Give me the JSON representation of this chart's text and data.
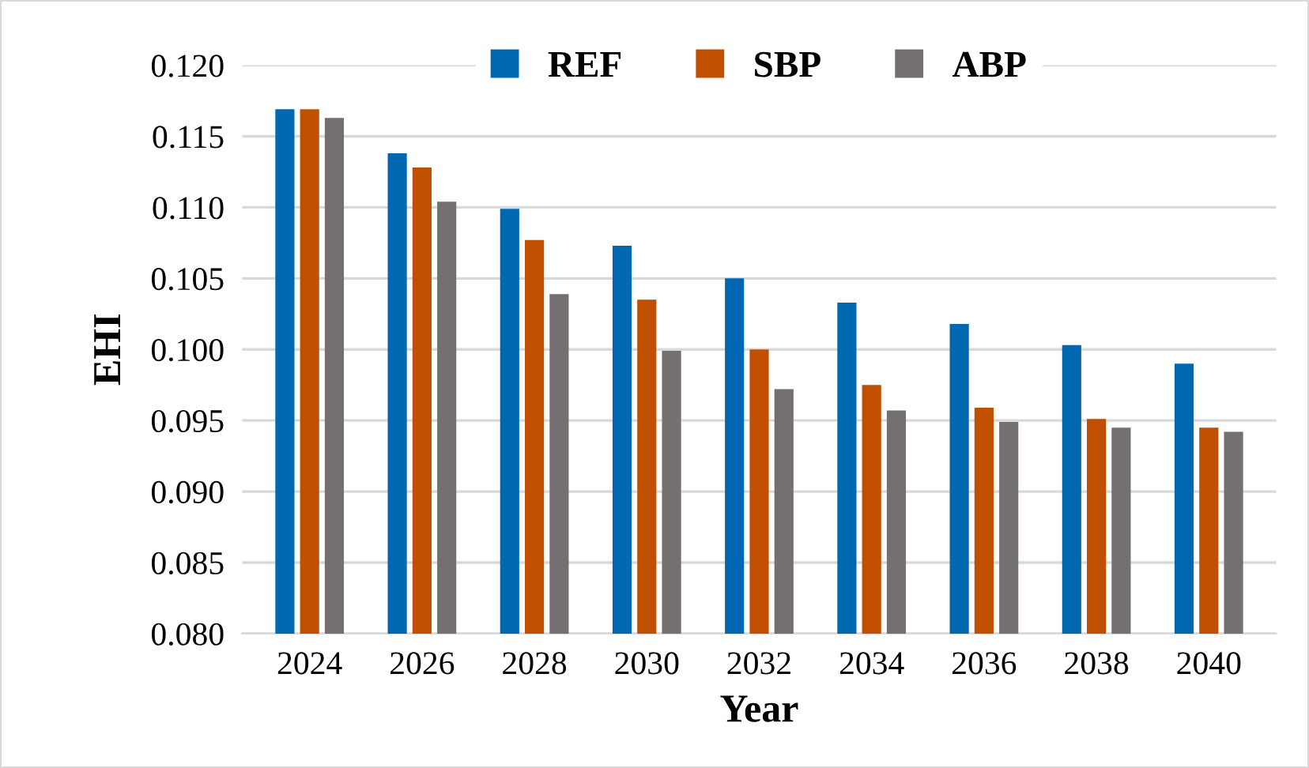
{
  "chart_data": {
    "type": "bar",
    "xlabel": "Year",
    "ylabel": "EHI",
    "categories": [
      "2024",
      "2026",
      "2028",
      "2030",
      "2032",
      "2034",
      "2036",
      "2038",
      "2040"
    ],
    "series": [
      {
        "name": "REF",
        "color": "#0068b0",
        "values": [
          0.1169,
          0.1138,
          0.1099,
          0.1073,
          0.105,
          0.1033,
          0.1018,
          0.1003,
          0.099
        ]
      },
      {
        "name": "SBP",
        "color": "#c05000",
        "values": [
          0.1169,
          0.1128,
          0.1077,
          0.1035,
          0.1,
          0.0975,
          0.0959,
          0.0951,
          0.0945
        ]
      },
      {
        "name": "ABP",
        "color": "#757070",
        "values": [
          0.1163,
          0.1104,
          0.1039,
          0.0999,
          0.0972,
          0.0957,
          0.0949,
          0.0945,
          0.0942
        ]
      }
    ],
    "ylim": [
      0.08,
      0.12
    ],
    "yticks": [
      {
        "value": 0.08,
        "label": "0.080"
      },
      {
        "value": 0.085,
        "label": "0.085"
      },
      {
        "value": 0.09,
        "label": "0.090"
      },
      {
        "value": 0.095,
        "label": "0.095"
      },
      {
        "value": 0.1,
        "label": "0.100"
      },
      {
        "value": 0.105,
        "label": "0.105"
      },
      {
        "value": 0.11,
        "label": "0.110"
      },
      {
        "value": 0.115,
        "label": "0.115"
      },
      {
        "value": 0.12,
        "label": "0.120"
      }
    ],
    "grid": "y",
    "legend": "top"
  }
}
